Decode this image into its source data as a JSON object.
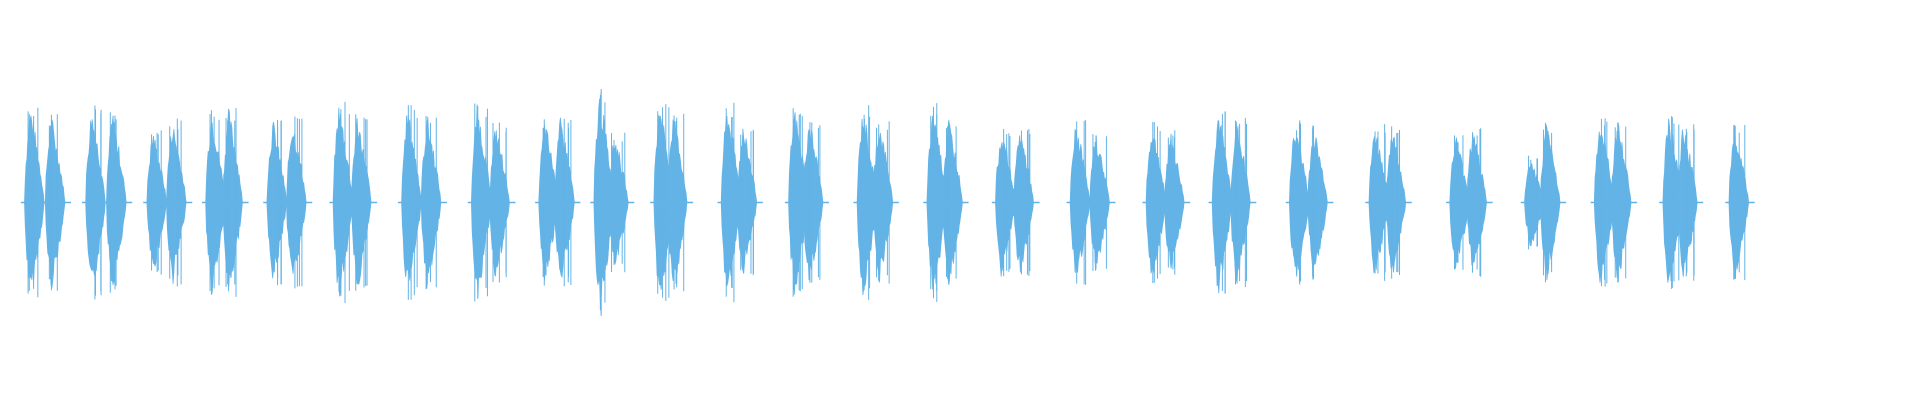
{
  "waveform": {
    "color": "#63b3e6"
  }
}
